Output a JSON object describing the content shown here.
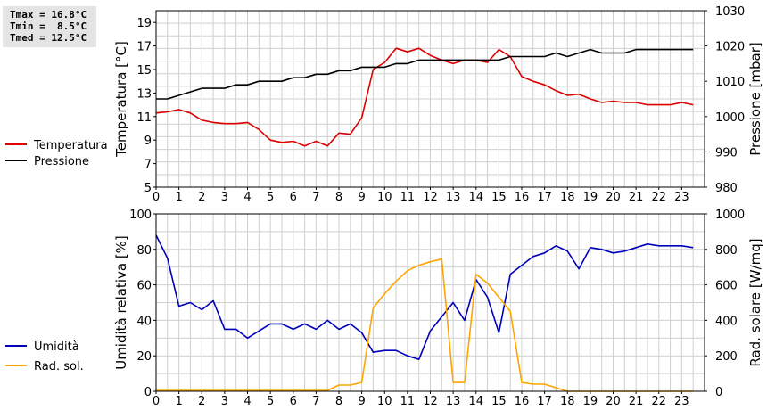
{
  "stats": {
    "tmax": "Tmax = 16.8°C",
    "tmin": "Tmin =  8.5°C",
    "tmed": "Tmed = 12.5°C"
  },
  "colors": {
    "temperature": "#dd0000",
    "pressure": "#000000",
    "humidity": "#0000bb",
    "radiation": "#ffa500",
    "grid": "#d0d0d0"
  },
  "chart_data": [
    {
      "type": "line",
      "x_ticks": [
        "0",
        "1",
        "2",
        "3",
        "4",
        "5",
        "6",
        "7",
        "8",
        "9",
        "10",
        "11",
        "12",
        "13",
        "14",
        "15",
        "16",
        "17",
        "18",
        "19",
        "20",
        "21",
        "22",
        "23"
      ],
      "xlim": [
        0,
        24
      ],
      "ylabel": "Temperatura [°C]",
      "ylim": [
        5,
        20
      ],
      "y_ticks": [
        "5",
        "7",
        "9",
        "11",
        "13",
        "15",
        "17",
        "19"
      ],
      "y2label": "Pressione [mbar]",
      "y2lim": [
        980,
        1030
      ],
      "y2_ticks": [
        "980",
        "990",
        "1000",
        "1010",
        "1020",
        "1030"
      ],
      "legend_position": "left",
      "grid": true,
      "series": [
        {
          "name": "Temperatura",
          "axis": "left",
          "color": "#dd0000",
          "x": [
            0,
            0.5,
            1,
            1.5,
            2,
            2.5,
            3,
            3.5,
            4,
            4.5,
            5,
            5.5,
            6,
            6.5,
            7,
            7.5,
            8,
            8.5,
            9,
            9.5,
            10,
            10.5,
            11,
            11.5,
            12,
            12.5,
            13,
            13.5,
            14,
            14.5,
            15,
            15.5,
            16,
            16.5,
            17,
            17.5,
            18,
            18.5,
            19,
            19.5,
            20,
            20.5,
            21,
            21.5,
            22,
            22.5,
            23,
            23.5
          ],
          "values": [
            11.3,
            11.4,
            11.6,
            11.3,
            10.7,
            10.5,
            10.4,
            10.4,
            10.5,
            9.9,
            9.0,
            8.8,
            8.9,
            8.5,
            8.9,
            8.5,
            9.6,
            9.5,
            10.9,
            15.0,
            15.6,
            16.8,
            16.5,
            16.8,
            16.2,
            15.8,
            15.5,
            15.8,
            15.8,
            15.6,
            16.7,
            16.1,
            14.4,
            14.0,
            13.7,
            13.2,
            12.8,
            12.9,
            12.5,
            12.2,
            12.3,
            12.2,
            12.2,
            12.0,
            12.0,
            12.0,
            12.2,
            12.0
          ]
        },
        {
          "name": "Pressione",
          "axis": "right",
          "color": "#000000",
          "x": [
            0,
            0.5,
            1,
            1.5,
            2,
            2.5,
            3,
            3.5,
            4,
            4.5,
            5,
            5.5,
            6,
            6.5,
            7,
            7.5,
            8,
            8.5,
            9,
            9.5,
            10,
            10.5,
            11,
            11.5,
            12,
            12.5,
            13,
            13.5,
            14,
            14.5,
            15,
            15.5,
            16,
            16.5,
            17,
            17.5,
            18,
            18.5,
            19,
            19.5,
            20,
            20.5,
            21,
            21.5,
            22,
            22.5,
            23,
            23.5
          ],
          "values": [
            1005,
            1005,
            1006,
            1007,
            1008,
            1008,
            1008,
            1009,
            1009,
            1010,
            1010,
            1010,
            1011,
            1011,
            1012,
            1012,
            1013,
            1013,
            1014,
            1014,
            1014,
            1015,
            1015,
            1016,
            1016,
            1016,
            1016,
            1016,
            1016,
            1016,
            1016,
            1017,
            1017,
            1017,
            1017,
            1018,
            1017,
            1018,
            1019,
            1018,
            1018,
            1018,
            1019,
            1019,
            1019,
            1019,
            1019,
            1019
          ]
        }
      ]
    },
    {
      "type": "line",
      "x_ticks": [
        "0",
        "1",
        "2",
        "3",
        "4",
        "5",
        "6",
        "7",
        "8",
        "9",
        "10",
        "11",
        "12",
        "13",
        "14",
        "15",
        "16",
        "17",
        "18",
        "19",
        "20",
        "21",
        "22",
        "23"
      ],
      "xlim": [
        0,
        24
      ],
      "ylabel": "Umidità relativa [%]",
      "ylim": [
        0,
        100
      ],
      "y_ticks": [
        "0",
        "20",
        "40",
        "60",
        "80",
        "100"
      ],
      "y2label": "Rad. solare [W/mq]",
      "y2lim": [
        0,
        1000
      ],
      "y2_ticks": [
        "0",
        "200",
        "400",
        "600",
        "800",
        "1000"
      ],
      "legend_position": "left",
      "grid": true,
      "series": [
        {
          "name": "Umidità",
          "axis": "left",
          "color": "#0000bb",
          "x": [
            0,
            0.5,
            1,
            1.5,
            2,
            2.5,
            3,
            3.5,
            4,
            4.5,
            5,
            5.5,
            6,
            6.5,
            7,
            7.5,
            8,
            8.5,
            9,
            9.5,
            10,
            10.5,
            11,
            11.5,
            12,
            12.5,
            13,
            13.5,
            14,
            14.5,
            15,
            15.5,
            16,
            16.5,
            17,
            17.5,
            18,
            18.5,
            19,
            19.5,
            20,
            20.5,
            21,
            21.5,
            22,
            22.5,
            23,
            23.5
          ],
          "values": [
            88,
            75,
            48,
            50,
            46,
            51,
            35,
            35,
            30,
            34,
            38,
            38,
            35,
            38,
            35,
            40,
            35,
            38,
            33,
            22,
            23,
            23,
            20,
            18,
            34,
            42,
            50,
            40,
            63,
            53,
            33,
            66,
            71,
            76,
            78,
            82,
            79,
            69,
            81,
            80,
            78,
            79,
            81,
            83,
            82,
            82,
            82,
            81
          ]
        },
        {
          "name": "Rad. sol.",
          "axis": "right",
          "color": "#ffa500",
          "x": [
            0,
            0.5,
            1,
            1.5,
            2,
            2.5,
            3,
            3.5,
            4,
            4.5,
            5,
            5.5,
            6,
            6.5,
            7,
            7.5,
            8,
            8.5,
            9,
            9.5,
            10,
            10.5,
            11,
            11.5,
            12,
            12.5,
            13,
            13.5,
            14,
            14.5,
            15,
            15.5,
            16,
            16.5,
            17,
            17.5,
            18,
            18.5,
            19,
            19.5,
            20,
            20.5,
            21,
            21.5,
            22,
            22.5,
            23,
            23.5
          ],
          "values": [
            5,
            5,
            5,
            5,
            5,
            5,
            5,
            5,
            5,
            5,
            5,
            5,
            5,
            5,
            5,
            5,
            35,
            35,
            50,
            470,
            550,
            620,
            680,
            710,
            730,
            745,
            50,
            50,
            660,
            610,
            530,
            450,
            50,
            40,
            40,
            20,
            0,
            0,
            0,
            0,
            0,
            0,
            0,
            0,
            0,
            0,
            0,
            0
          ]
        }
      ]
    }
  ]
}
